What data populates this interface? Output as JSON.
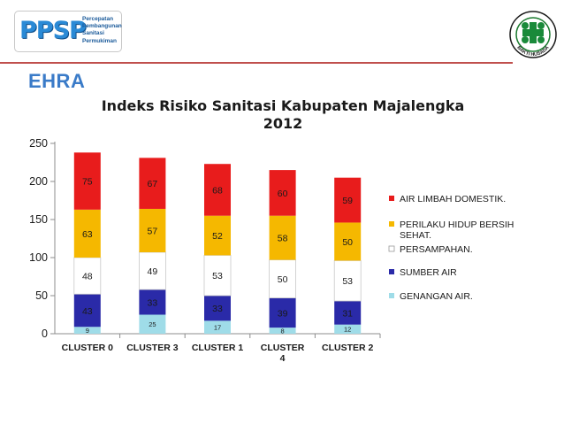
{
  "header": {
    "logo_text": "PPSP",
    "logo_sub_lines": [
      "Percepatan",
      "Pembangunan",
      "Sanitasi",
      "Permukiman"
    ],
    "emblem_text": "BAKTI HUSADA",
    "section_label": "EHRA"
  },
  "colors": {
    "accent_line": "#c0504d",
    "section_label": "#3a7bc8",
    "air_limbah": "#e81c1c",
    "perilaku": "#f5b800",
    "persampahan": "#ffffff",
    "sumber_air": "#2a2aa8",
    "genangan": "#9fdce8"
  },
  "chart_data": {
    "type": "bar",
    "stacked": true,
    "title": "Indeks Risiko Sanitasi Kabupaten Majalengka 2012",
    "title_lines": [
      "Indeks Risiko Sanitasi Kabupaten Majalengka",
      "2012"
    ],
    "categories": [
      "CLUSTER 0",
      "CLUSTER 3",
      "CLUSTER 1",
      "CLUSTER 4",
      "CLUSTER 2"
    ],
    "category_lines": [
      [
        "CLUSTER 0"
      ],
      [
        "CLUSTER 3"
      ],
      [
        "CLUSTER 1"
      ],
      [
        "CLUSTER",
        "4"
      ],
      [
        "CLUSTER 2"
      ]
    ],
    "series": [
      {
        "name": "GENANGAN AIR.",
        "color": "#9fdce8",
        "values": [
          9,
          25,
          17,
          8,
          12
        ]
      },
      {
        "name": "SUMBER AIR",
        "color": "#2a2aa8",
        "values": [
          43,
          33,
          33,
          39,
          31
        ]
      },
      {
        "name": "PERSAMPAHAN.",
        "color": "#ffffff",
        "values": [
          48,
          49,
          53,
          50,
          53
        ]
      },
      {
        "name": "PERILAKU HIDUP BERSIH SEHAT.",
        "color": "#f5b800",
        "values": [
          63,
          57,
          52,
          58,
          50
        ]
      },
      {
        "name": "AIR LIMBAH DOMESTIK.",
        "color": "#e81c1c",
        "values": [
          75,
          67,
          68,
          60,
          59
        ]
      }
    ],
    "legend_order": [
      "AIR LIMBAH DOMESTIK.",
      "PERILAKU HIDUP BERSIH SEHAT.",
      "PERSAMPAHAN.",
      "SUMBER AIR",
      "GENANGAN AIR."
    ],
    "legend_lines": [
      [
        "AIR LIMBAH DOMESTIK."
      ],
      [
        "PERILAKU HIDUP BERSIH",
        "SEHAT."
      ],
      [
        "PERSAMPAHAN."
      ],
      [
        "SUMBER AIR"
      ],
      [
        "GENANGAN AIR."
      ]
    ],
    "yticks": [
      "0",
      "50",
      "100",
      "150",
      "200",
      "250"
    ],
    "ylim": [
      0,
      250
    ],
    "grid": false,
    "legend": "right"
  }
}
